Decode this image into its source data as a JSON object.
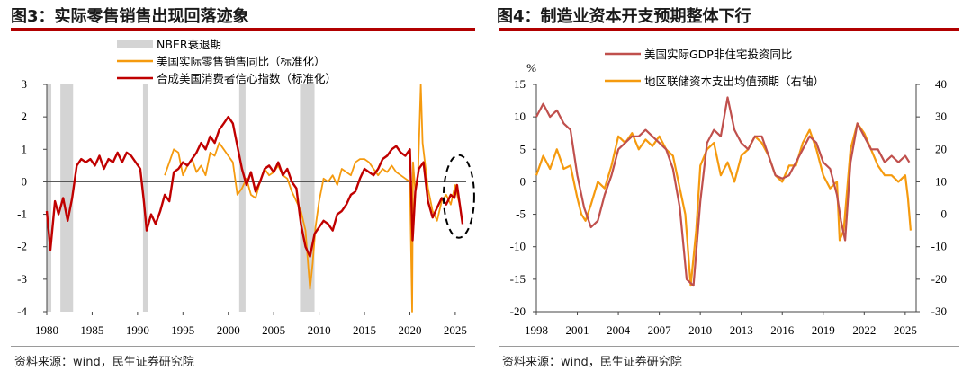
{
  "colors": {
    "accent": "#b10000",
    "orange": "#f59a0e",
    "red": "#c00000",
    "rose": "#c0504d",
    "recession": "#d4d4d4"
  },
  "panel1": {
    "title": "图3：实际零售销售出现回落迹象",
    "source": "资料来源：wind，民生证券研究院"
  },
  "panel2": {
    "title": "图4：制造业资本开支预期整体下行",
    "source": "资料来源：wind，民生证券研究院"
  },
  "chart_data": [
    {
      "type": "line",
      "title": "图3：实际零售销售出现回落迹象",
      "xlabel": "",
      "ylabel": "",
      "xlim": [
        1980,
        2026.2
      ],
      "ylim": [
        -4,
        3
      ],
      "xticks": [
        1980,
        1985,
        1990,
        1995,
        2000,
        2005,
        2010,
        2015,
        2020,
        2025
      ],
      "yticks": [
        -4,
        -3,
        -2,
        -1,
        0,
        1,
        2,
        3
      ],
      "legend": [
        "NBER衰退期",
        "美国实际零售销售同比（标准化）",
        "合成美国消费者信心指数（标准化）"
      ],
      "recessions": [
        [
          1980.0,
          1980.5
        ],
        [
          1981.5,
          1982.9
        ],
        [
          1990.6,
          1991.2
        ],
        [
          2001.2,
          2001.9
        ],
        [
          2007.9,
          2009.5
        ]
      ],
      "series": [
        {
          "name": "合成美国消费者信心指数（标准化）",
          "color": "#c00000",
          "x": [
            1980,
            1980.4,
            1980.9,
            1981.3,
            1981.8,
            1982.3,
            1982.8,
            1983.3,
            1983.8,
            1984.3,
            1984.8,
            1985.3,
            1985.8,
            1986.3,
            1986.8,
            1987.3,
            1987.8,
            1988.3,
            1988.8,
            1989.3,
            1989.8,
            1990.3,
            1990.7,
            1991.0,
            1991.5,
            1992.0,
            1992.5,
            1993.0,
            1993.5,
            1994.0,
            1994.5,
            1995.0,
            1995.5,
            1996.0,
            1996.5,
            1997.0,
            1997.5,
            1998.0,
            1998.5,
            1999.0,
            1999.5,
            2000.0,
            2000.5,
            2001.0,
            2001.5,
            2002.0,
            2002.5,
            2003.0,
            2003.5,
            2004.0,
            2004.5,
            2005.0,
            2005.5,
            2006.0,
            2006.5,
            2007.0,
            2007.5,
            2008.0,
            2008.5,
            2009.0,
            2009.5,
            2010.0,
            2010.5,
            2011.0,
            2011.5,
            2012.0,
            2012.5,
            2013.0,
            2013.5,
            2014.0,
            2014.5,
            2015.0,
            2015.5,
            2016.0,
            2016.5,
            2017.0,
            2017.5,
            2018.0,
            2018.5,
            2019.0,
            2019.5,
            2020.0,
            2020.3,
            2020.6,
            2021.0,
            2021.5,
            2022.0,
            2022.5,
            2023.0,
            2023.5,
            2024.0,
            2024.5,
            2024.9,
            2025.2,
            2025.5,
            2025.8
          ],
          "values": [
            -0.9,
            -2.1,
            -0.6,
            -1.0,
            -0.5,
            -1.2,
            -0.5,
            0.5,
            0.7,
            0.6,
            0.7,
            0.5,
            0.8,
            0.4,
            0.7,
            0.6,
            0.9,
            0.6,
            0.9,
            0.8,
            0.6,
            0.4,
            -0.6,
            -1.5,
            -1.0,
            -1.3,
            -0.9,
            -0.4,
            -0.6,
            0.3,
            0.4,
            0.6,
            0.5,
            0.7,
            0.9,
            1.2,
            1.0,
            1.4,
            1.2,
            1.6,
            1.8,
            2.0,
            1.8,
            1.1,
            0.4,
            -0.1,
            0.3,
            -0.3,
            0.0,
            0.4,
            0.5,
            0.3,
            0.6,
            0.2,
            0.4,
            0.0,
            -0.2,
            -1.3,
            -2.0,
            -2.3,
            -1.6,
            -1.4,
            -1.2,
            -1.3,
            -1.5,
            -1.0,
            -0.9,
            -0.7,
            -0.4,
            -0.3,
            0.1,
            0.4,
            0.3,
            0.2,
            0.4,
            0.7,
            0.8,
            1.0,
            1.1,
            0.9,
            0.8,
            1.0,
            -1.8,
            -0.3,
            0.4,
            0.6,
            -0.6,
            -1.1,
            -0.8,
            -0.5,
            -0.7,
            -0.4,
            -0.5,
            -0.1,
            -0.7,
            -1.3
          ]
        },
        {
          "name": "美国实际零售销售同比（标准化）",
          "color": "#f59a0e",
          "x": [
            1993.0,
            1993.5,
            1994.0,
            1994.5,
            1995.0,
            1995.5,
            1996.0,
            1996.5,
            1997.0,
            1997.5,
            1998.0,
            1998.5,
            1999.0,
            1999.5,
            2000.0,
            2000.5,
            2001.0,
            2001.5,
            2002.0,
            2002.5,
            2003.0,
            2003.5,
            2004.0,
            2004.5,
            2005.0,
            2005.5,
            2006.0,
            2006.5,
            2007.0,
            2007.5,
            2008.0,
            2008.5,
            2009.0,
            2009.3,
            2009.6,
            2010.0,
            2010.5,
            2011.0,
            2011.5,
            2012.0,
            2012.5,
            2013.0,
            2013.5,
            2014.0,
            2014.5,
            2015.0,
            2015.5,
            2016.0,
            2016.5,
            2017.0,
            2017.5,
            2018.0,
            2018.5,
            2019.0,
            2019.5,
            2020.0,
            2020.25,
            2020.35,
            2020.6,
            2020.9,
            2021.2,
            2021.4,
            2021.7,
            2022.0,
            2022.5,
            2023.0,
            2023.5,
            2024.0,
            2024.5,
            2025.0,
            2025.3,
            2025.6
          ],
          "values": [
            0.2,
            0.6,
            1.0,
            0.9,
            0.2,
            0.5,
            0.7,
            0.3,
            0.5,
            0.2,
            0.9,
            0.8,
            1.2,
            1.0,
            0.8,
            0.6,
            -0.4,
            -0.2,
            0.1,
            -0.4,
            -0.5,
            0.0,
            0.4,
            0.2,
            0.3,
            0.5,
            0.2,
            0.1,
            -0.3,
            -0.6,
            -0.9,
            -1.5,
            -3.3,
            -2.5,
            -1.4,
            -0.6,
            0.1,
            0.0,
            0.2,
            -0.1,
            0.4,
            0.3,
            0.2,
            0.6,
            0.7,
            0.7,
            0.6,
            0.4,
            0.2,
            0.4,
            0.3,
            0.5,
            0.3,
            0.2,
            0.1,
            0.0,
            -4.0,
            0.6,
            -0.3,
            0.2,
            3.0,
            1.2,
            0.5,
            -0.2,
            -0.9,
            -1.2,
            -0.6,
            -0.4,
            -0.7,
            -0.1,
            -0.5,
            -0.8
          ]
        }
      ]
    },
    {
      "type": "line",
      "title": "图4：制造业资本开支预期整体下行",
      "xlabel": "",
      "ylabel": "%",
      "xlim": [
        1998,
        2025.8
      ],
      "ylim": [
        -20,
        15
      ],
      "y2lim": [
        -30,
        40
      ],
      "xticks": [
        1998,
        2001,
        2004,
        2007,
        2010,
        2013,
        2016,
        2019,
        2022,
        2025
      ],
      "yticks": [
        -20,
        -15,
        -10,
        -5,
        0,
        5,
        10,
        15
      ],
      "y2ticks": [
        -30,
        -20,
        -10,
        0,
        10,
        20,
        30,
        40
      ],
      "legend": [
        "美国实际GDP非住宅投资同比",
        "地区联储资本支出均值预期（右轴）"
      ],
      "series": [
        {
          "name": "美国实际GDP非住宅投资同比",
          "color": "#c0504d",
          "axis": "left",
          "x": [
            1998,
            1998.5,
            1999,
            1999.5,
            2000,
            2000.5,
            2001,
            2001.5,
            2002,
            2002.5,
            2003,
            2003.5,
            2004,
            2004.5,
            2005,
            2005.5,
            2006,
            2006.5,
            2007,
            2007.5,
            2008,
            2008.5,
            2009,
            2009.5,
            2010,
            2010.5,
            2011,
            2011.5,
            2012,
            2012.5,
            2013,
            2013.5,
            2014,
            2014.5,
            2015,
            2015.5,
            2016,
            2016.5,
            2017,
            2017.5,
            2018,
            2018.5,
            2019,
            2019.5,
            2020,
            2020.3,
            2020.6,
            2021,
            2021.5,
            2022,
            2022.5,
            2023,
            2023.5,
            2024,
            2024.5,
            2025,
            2025.3
          ],
          "values": [
            10,
            12,
            10,
            11,
            9,
            8,
            1,
            -4,
            -7,
            -6,
            -2,
            1,
            5,
            6,
            7,
            7,
            8,
            7,
            6,
            5,
            2,
            -4,
            -15,
            -16,
            -3,
            6,
            8,
            7,
            13,
            8,
            6,
            5,
            7,
            7,
            4,
            1,
            0.5,
            1,
            3,
            5,
            7,
            6,
            3,
            2,
            -2,
            -6,
            -9,
            3,
            9,
            7,
            5,
            5,
            3,
            4,
            3,
            4,
            3
          ]
        },
        {
          "name": "地区联储资本支出均值预期（右轴）",
          "color": "#f59a0e",
          "axis": "right",
          "x": [
            1998,
            1998.5,
            1999,
            1999.5,
            2000,
            2000.5,
            2001,
            2001.3,
            2001.6,
            2002,
            2002.5,
            2003,
            2003.5,
            2004,
            2004.5,
            2005,
            2005.5,
            2006,
            2006.5,
            2007,
            2007.5,
            2008,
            2008.5,
            2008.9,
            2009.3,
            2009.7,
            2010,
            2010.5,
            2011,
            2011.5,
            2012,
            2012.5,
            2013,
            2013.5,
            2014,
            2014.5,
            2015,
            2015.5,
            2016,
            2016.5,
            2017,
            2017.5,
            2018,
            2018.5,
            2019,
            2019.5,
            2020,
            2020.2,
            2020.5,
            2021,
            2021.5,
            2022,
            2022.5,
            2023,
            2023.5,
            2024,
            2024.5,
            2025,
            2025.2,
            2025.4
          ],
          "values": [
            12,
            18,
            14,
            20,
            14,
            15,
            5,
            0,
            -2,
            3,
            10,
            8,
            15,
            24,
            22,
            25,
            20,
            23,
            21,
            24,
            20,
            18,
            8,
            0,
            -22,
            -5,
            15,
            20,
            22,
            12,
            16,
            10,
            18,
            20,
            24,
            22,
            18,
            12,
            10,
            15,
            15,
            22,
            26,
            20,
            12,
            8,
            10,
            -8,
            -5,
            20,
            28,
            25,
            20,
            15,
            12,
            12,
            10,
            12,
            5,
            -5
          ]
        }
      ]
    }
  ]
}
